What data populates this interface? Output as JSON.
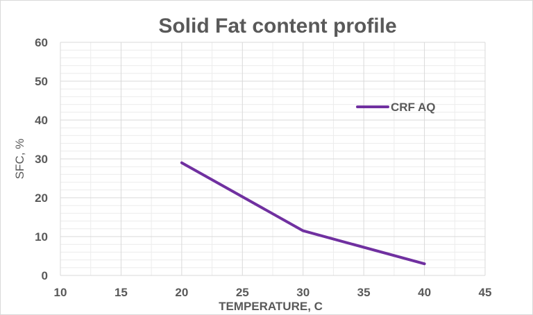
{
  "chart_data": {
    "type": "line",
    "title": "Solid Fat content profile",
    "xlabel": "TEMPERATURE, C",
    "ylabel": "SFC, %",
    "xlim": [
      10,
      45
    ],
    "ylim": [
      0,
      60
    ],
    "x_ticks": [
      "10",
      "15",
      "20",
      "25",
      "30",
      "35",
      "40",
      "45"
    ],
    "y_ticks": [
      "0",
      "10",
      "20",
      "30",
      "40",
      "50",
      "60"
    ],
    "grid": true,
    "legend_position": "right",
    "series": [
      {
        "name": "CRF AQ",
        "color": "#7030a0",
        "x": [
          20,
          30,
          40
        ],
        "y": [
          29,
          11.5,
          3
        ]
      }
    ]
  }
}
